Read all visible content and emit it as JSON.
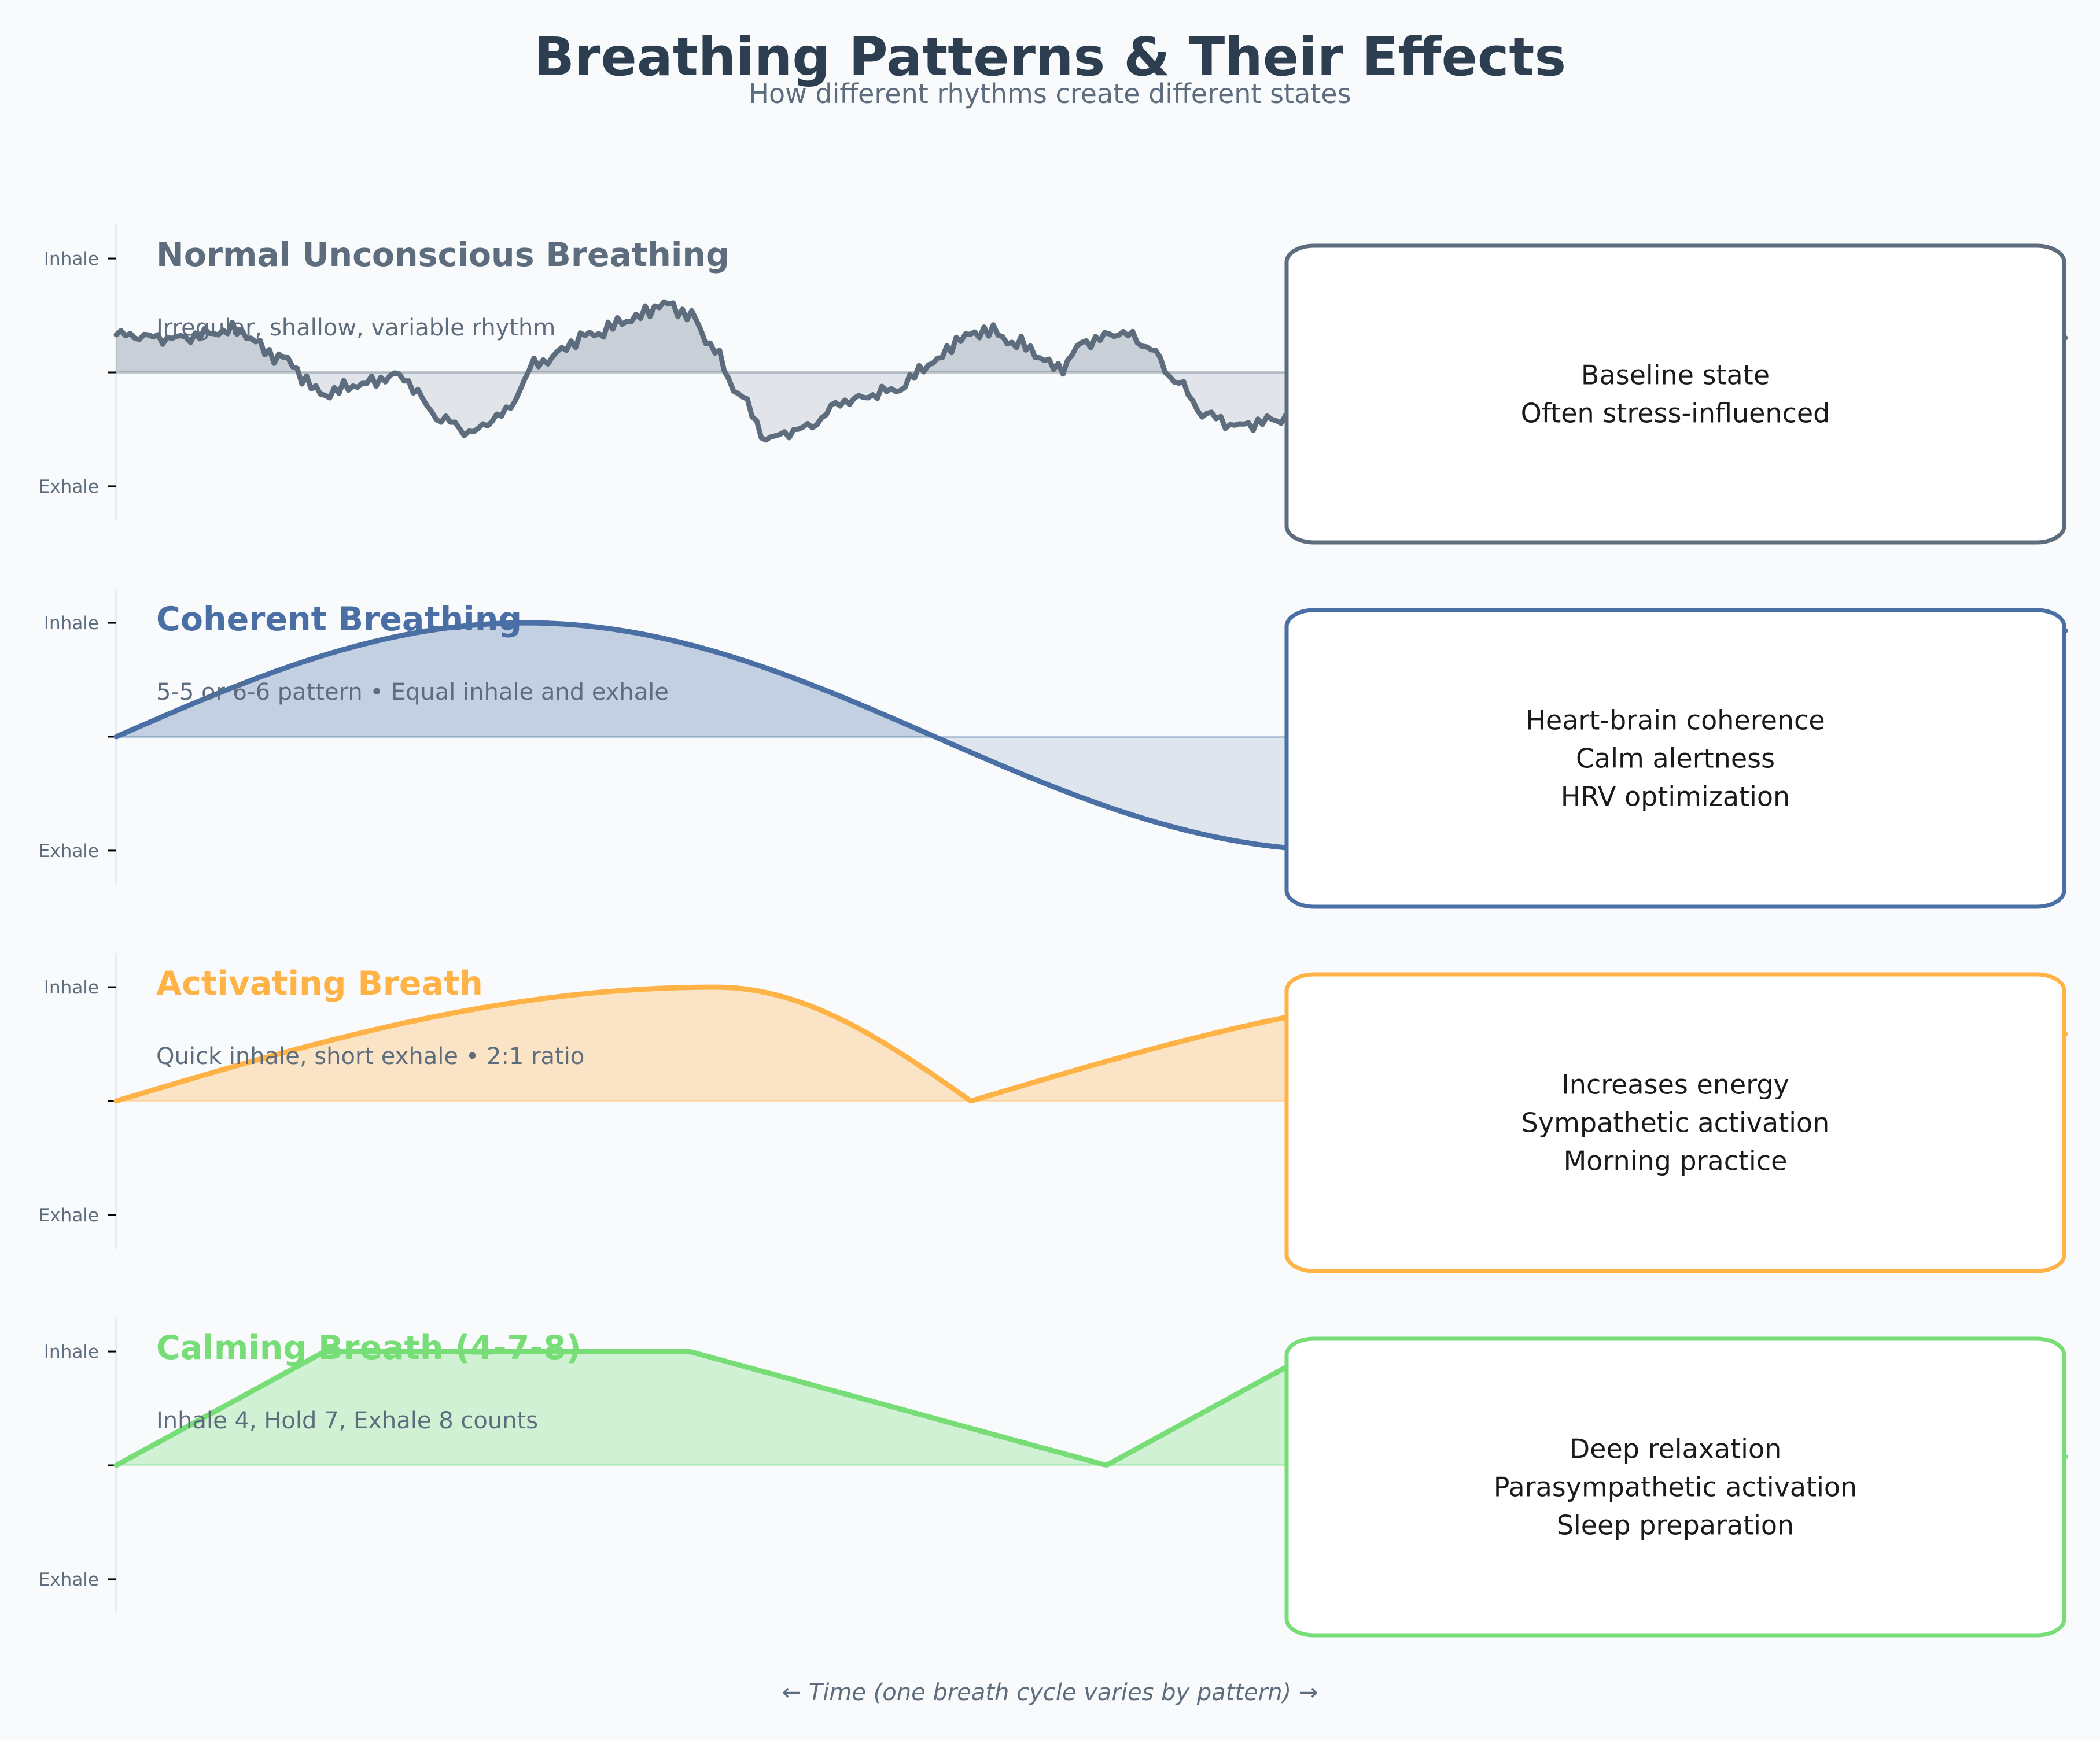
{
  "header": {
    "title": "Breathing Patterns & Their Effects",
    "subtitle": "How different rhythms create different states"
  },
  "footer": {
    "xlabel": "← Time (one breath cycle varies by pattern) →"
  },
  "chart_data": [
    {
      "type": "area",
      "title": "Normal Unconscious Breathing",
      "subtitle": "Irregular, shallow, variable rhythm",
      "color": "#5D6D7E",
      "yticks": [
        {
          "value": 1,
          "label": "Inhale"
        },
        {
          "value": 0,
          "label": ""
        },
        {
          "value": -1,
          "label": "Exhale"
        }
      ],
      "ylim": [
        -1.3,
        1.3
      ],
      "xlim": [
        0,
        37.4
      ],
      "x": [
        0,
        1.1,
        2.3,
        3.1,
        4.0,
        4.6,
        5.4,
        6.3,
        6.8,
        7.4,
        8.1,
        9.1,
        9.9,
        10.5,
        11.0,
        11.4,
        11.9,
        12.5,
        13.2,
        14.0,
        14.9,
        15.7,
        16.2,
        16.7,
        17.3,
        18.1,
        18.6,
        19.3,
        19.8,
        20.3,
        20.9,
        21.5,
        22.2,
        22.7,
        24.0,
        26.0,
        28.0,
        30.0,
        32.0,
        34.0,
        37.4
      ],
      "y": [
        0.33,
        0.3,
        0.37,
        0.14,
        -0.19,
        -0.11,
        -0.03,
        -0.42,
        -0.53,
        -0.37,
        0.09,
        0.33,
        0.47,
        0.6,
        0.51,
        0.25,
        -0.16,
        -0.58,
        -0.49,
        -0.25,
        -0.16,
        0.09,
        0.3,
        0.37,
        0.25,
        0.04,
        0.27,
        0.35,
        0.23,
        -0.06,
        -0.37,
        -0.47,
        -0.42,
        -0.37,
        -0.1,
        0.3,
        0.2,
        -0.3,
        -0.4,
        0.1,
        0.3
      ],
      "effects": [
        "Baseline state",
        "Often stress-influenced"
      ]
    },
    {
      "type": "area",
      "title": "Coherent Breathing",
      "subtitle": "5-5 or 6-6 pattern • Equal inhale and exhale",
      "color": "#4A6FA5",
      "function": "sin(x/5)",
      "yticks": [
        {
          "value": 1,
          "label": "Inhale"
        },
        {
          "value": 0,
          "label": ""
        },
        {
          "value": -1,
          "label": "Exhale"
        }
      ],
      "ylim": [
        -1.3,
        1.3
      ],
      "xlim": [
        0,
        37.4
      ],
      "effects": [
        "Heart-brain coherence",
        "Calm alertness",
        "HRV optimization"
      ]
    },
    {
      "type": "area",
      "title": "Activating Breath",
      "subtitle": "Quick inhale, short exhale • 2:1 ratio",
      "color": "#FFB347",
      "cycle": {
        "inhale": 11.5,
        "exhale": 4.9
      },
      "yticks": [
        {
          "value": 1,
          "label": "Inhale"
        },
        {
          "value": 0,
          "label": ""
        },
        {
          "value": -1,
          "label": "Exhale"
        }
      ],
      "ylim": [
        -1.3,
        1.3
      ],
      "xlim": [
        0,
        37.4
      ],
      "effects": [
        "Increases energy",
        "Sympathetic activation",
        "Morning practice"
      ]
    },
    {
      "type": "area",
      "title": "Calming Breath (4-7-8)",
      "subtitle": "Inhale 4, Hold 7, Exhale 8 counts",
      "color": "#77DD77",
      "cycle": {
        "inhale": 4,
        "hold": 7,
        "exhale": 8
      },
      "yticks": [
        {
          "value": 1,
          "label": "Inhale"
        },
        {
          "value": 0,
          "label": ""
        },
        {
          "value": -1,
          "label": "Exhale"
        }
      ],
      "ylim": [
        -1.3,
        1.3
      ],
      "xlim": [
        0,
        37.4
      ],
      "effects": [
        "Deep relaxation",
        "Parasympathetic activation",
        "Sleep preparation"
      ]
    }
  ]
}
